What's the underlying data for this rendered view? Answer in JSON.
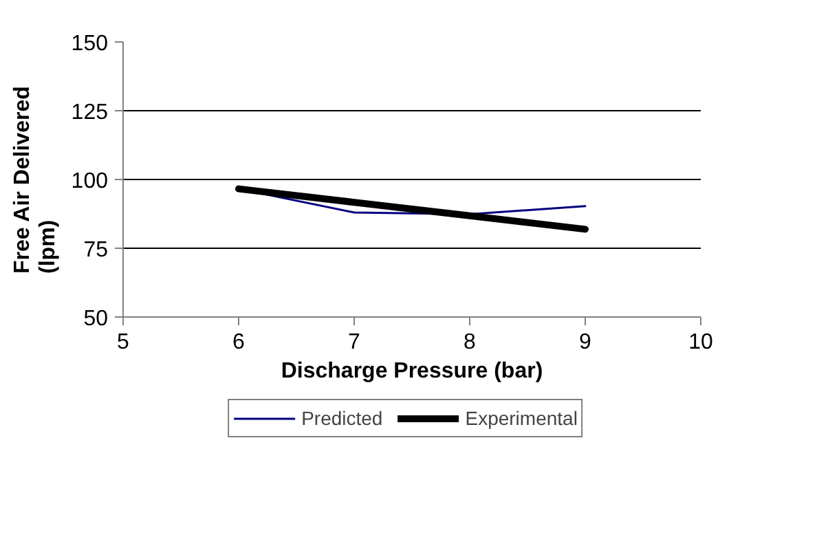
{
  "chart_data": {
    "type": "line",
    "xlabel": "Discharge Pressure (bar)",
    "ylabel": "Free Air Delivered\n(lpm)",
    "x": [
      6,
      7,
      8,
      9
    ],
    "series": [
      {
        "name": "Predicted",
        "color": "#000080",
        "values": [
          96.6,
          88,
          87.4,
          90.3
        ]
      },
      {
        "name": "Experimental",
        "color": "#000000",
        "values": [
          96.6,
          91.7,
          86.8,
          81.9
        ]
      }
    ],
    "xlim": [
      5,
      10
    ],
    "xticks": [
      5,
      6,
      7,
      8,
      9,
      10
    ],
    "ylim": [
      50,
      150
    ],
    "yticks": [
      50,
      75,
      100,
      125,
      150
    ],
    "grid": "y",
    "legend": "bottom"
  }
}
